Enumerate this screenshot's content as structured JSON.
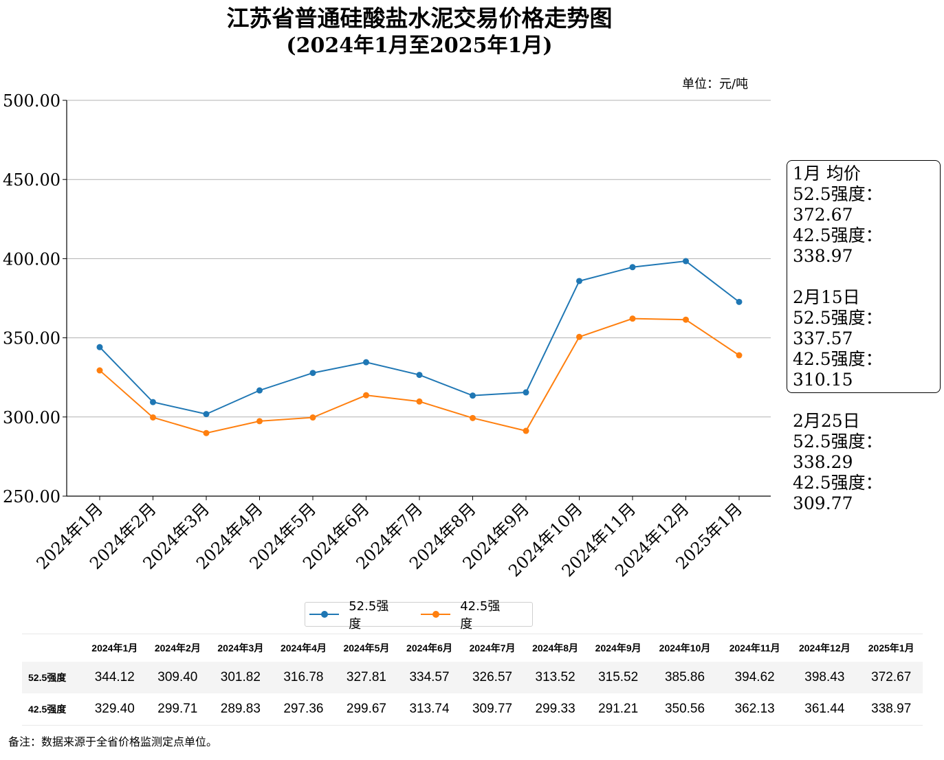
{
  "title_line1": "江苏省普通硅酸盐水泥交易价格走势图",
  "title_line2": "(2024年1月至2025年1月)",
  "unit_label": "单位：元/吨",
  "chart_data": {
    "type": "line",
    "categories": [
      "2024年1月",
      "2024年2月",
      "2024年3月",
      "2024年4月",
      "2024年5月",
      "2024年6月",
      "2024年7月",
      "2024年8月",
      "2024年9月",
      "2024年10月",
      "2024年11月",
      "2024年12月",
      "2025年1月"
    ],
    "series": [
      {
        "name": "52.5强度",
        "color": "#1f77b4",
        "values": [
          344.12,
          309.4,
          301.82,
          316.78,
          327.81,
          334.57,
          326.57,
          313.52,
          315.52,
          385.86,
          394.62,
          398.43,
          372.67
        ]
      },
      {
        "name": "42.5强度",
        "color": "#ff7f0e",
        "values": [
          329.4,
          299.71,
          289.83,
          297.36,
          299.67,
          313.74,
          309.77,
          299.33,
          291.21,
          350.56,
          362.13,
          361.44,
          338.97
        ]
      }
    ],
    "ylim": [
      250,
      500
    ],
    "yticks": [
      "250.00",
      "300.00",
      "350.00",
      "400.00",
      "450.00",
      "500.00"
    ],
    "grid": "horizontal",
    "legend_position": "bottom-center"
  },
  "avg_box": {
    "heading1": "1月 均价",
    "a1": "52.5强度：372.67",
    "b1": "42.5强度：338.97",
    "heading2": "2月15日",
    "a2": "52.5强度：337.57",
    "b2": "42.5强度：310.15",
    "heading3": "2月25日",
    "a3": "52.5强度：338.29",
    "b3": "42.5强度：309.77"
  },
  "legend": {
    "s1": "52.5强度",
    "s2": "42.5强度"
  },
  "table": {
    "headers": [
      "2024年1月",
      "2024年2月",
      "2024年3月",
      "2024年4月",
      "2024年5月",
      "2024年6月",
      "2024年7月",
      "2024年8月",
      "2024年9月",
      "2024年10月",
      "2024年11月",
      "2024年12月",
      "2025年1月"
    ],
    "row1_label": "52.5强度",
    "row1": [
      "344.12",
      "309.40",
      "301.82",
      "316.78",
      "327.81",
      "334.57",
      "326.57",
      "313.52",
      "315.52",
      "385.86",
      "394.62",
      "398.43",
      "372.67"
    ],
    "row2_label": "42.5强度",
    "row2": [
      "329.40",
      "299.71",
      "289.83",
      "297.36",
      "299.67",
      "313.74",
      "309.77",
      "299.33",
      "291.21",
      "350.56",
      "362.13",
      "361.44",
      "338.97"
    ]
  },
  "note": "备注：数据来源于全省价格监测定点单位。"
}
